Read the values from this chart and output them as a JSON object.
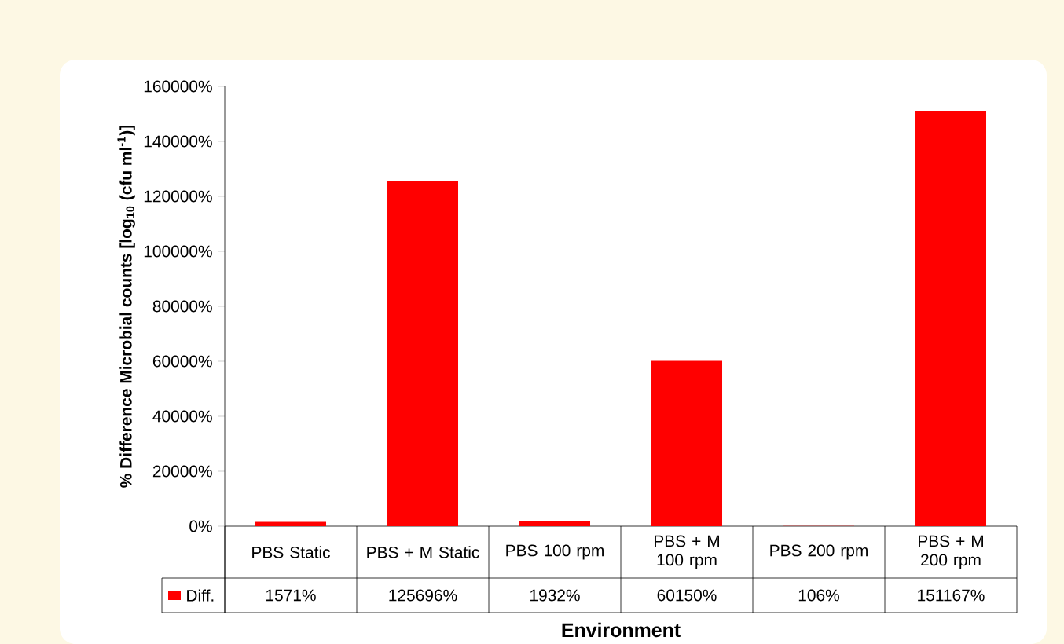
{
  "chart_data": {
    "type": "bar",
    "xlabel": "Environment",
    "ylabel": "% Difference Microbial counts [log$_{10}$ (cfu ml$^{-1}$)]",
    "categories": [
      "PBS Static",
      "PBS + M Static",
      "PBS 100 rpm",
      "PBS + M 100 rpm",
      "PBS 200 rpm",
      "PBS + M 200 rpm"
    ],
    "series": [
      {
        "name": "Diff.",
        "color": "#ff0000",
        "values": [
          1571,
          125696,
          1932,
          60150,
          106,
          151167
        ],
        "value_labels": [
          "1571%",
          "125696%",
          "1932%",
          "60150%",
          "106%",
          "151167%"
        ]
      }
    ],
    "ylim": [
      0,
      160000
    ],
    "yticks": [
      {
        "value": 0,
        "label": "0%"
      },
      {
        "value": 20000,
        "label": "20000%"
      },
      {
        "value": 40000,
        "label": "40000%"
      },
      {
        "value": 60000,
        "label": "60000%"
      },
      {
        "value": 80000,
        "label": "80000%"
      },
      {
        "value": 100000,
        "label": "100000%"
      },
      {
        "value": 120000,
        "label": "120000%"
      },
      {
        "value": 140000,
        "label": "140000%"
      },
      {
        "value": 160000,
        "label": "160000%"
      }
    ],
    "legend": "bottom left"
  }
}
